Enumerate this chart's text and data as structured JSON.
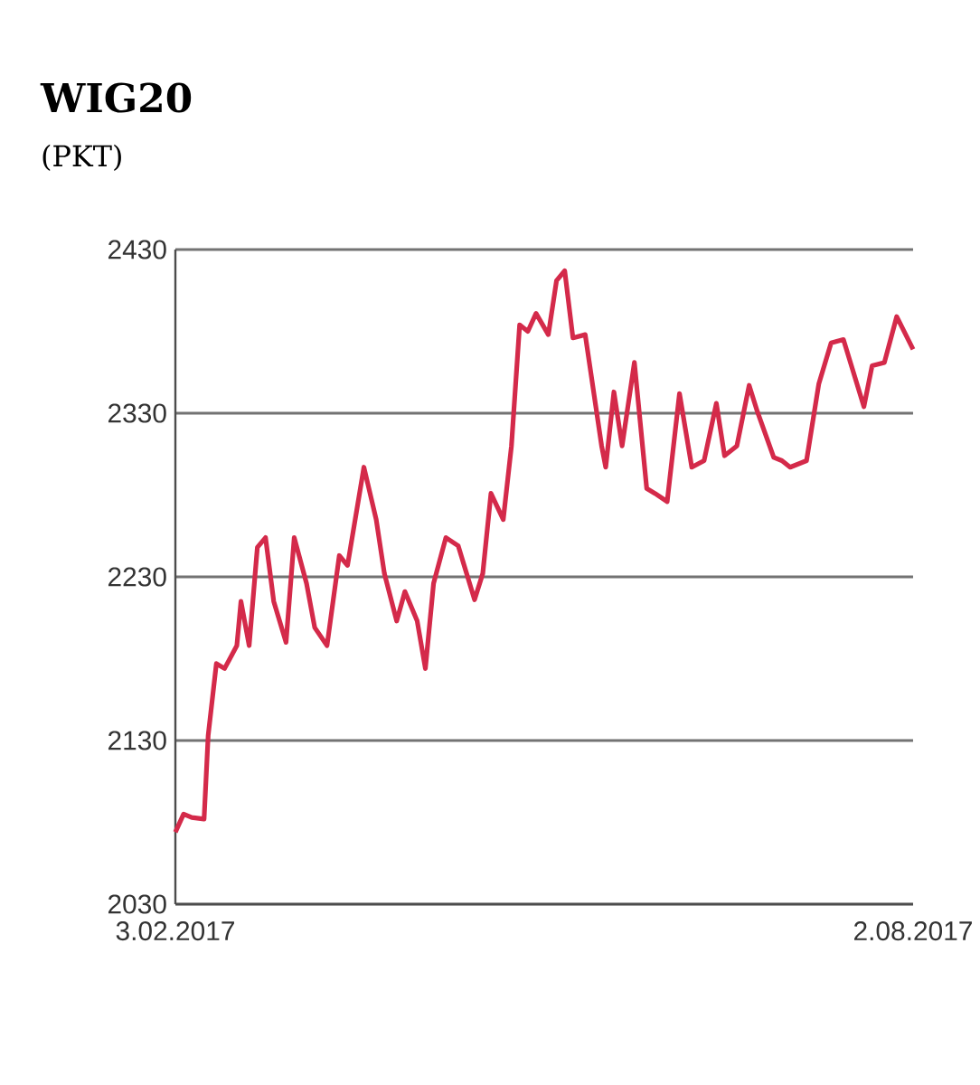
{
  "chart_data": {
    "type": "line",
    "title": "WIG20",
    "subtitle": "(PKT)",
    "x": [
      "2017-02-03",
      "2017-02-05",
      "2017-02-07",
      "2017-02-10",
      "2017-02-11",
      "2017-02-13",
      "2017-02-15",
      "2017-02-18",
      "2017-02-19",
      "2017-02-21",
      "2017-02-23",
      "2017-02-25",
      "2017-02-27",
      "2017-03-02",
      "2017-03-04",
      "2017-03-07",
      "2017-03-09",
      "2017-03-12",
      "2017-03-15",
      "2017-03-17",
      "2017-03-21",
      "2017-03-24",
      "2017-03-26",
      "2017-03-29",
      "2017-03-31",
      "2017-04-03",
      "2017-04-05",
      "2017-04-07",
      "2017-04-10",
      "2017-04-13",
      "2017-04-17",
      "2017-04-19",
      "2017-04-21",
      "2017-04-24",
      "2017-04-26",
      "2017-04-28",
      "2017-04-30",
      "2017-05-02",
      "2017-05-05",
      "2017-05-07",
      "2017-05-09",
      "2017-05-11",
      "2017-05-14",
      "2017-05-18",
      "2017-05-19",
      "2017-05-21",
      "2017-05-23",
      "2017-05-26",
      "2017-05-29",
      "2017-05-31",
      "2017-06-03",
      "2017-06-06",
      "2017-06-09",
      "2017-06-12",
      "2017-06-15",
      "2017-06-17",
      "2017-06-20",
      "2017-06-23",
      "2017-06-25",
      "2017-06-29",
      "2017-07-01",
      "2017-07-03",
      "2017-07-07",
      "2017-07-10",
      "2017-07-13",
      "2017-07-16",
      "2017-07-21",
      "2017-07-23",
      "2017-07-26",
      "2017-07-29",
      "2017-08-02"
    ],
    "series": [
      {
        "color": "#d42a4a",
        "values": [
          2074,
          2085,
          2083,
          2082,
          2133,
          2177,
          2174,
          2188,
          2215,
          2188,
          2248,
          2254,
          2215,
          2190,
          2254,
          2226,
          2199,
          2188,
          2243,
          2237,
          2297,
          2265,
          2232,
          2203,
          2221,
          2203,
          2174,
          2226,
          2254,
          2249,
          2216,
          2232,
          2281,
          2265,
          2310,
          2384,
          2380,
          2391,
          2378,
          2411,
          2417,
          2376,
          2378,
          2310,
          2297,
          2343,
          2310,
          2361,
          2284,
          2281,
          2276,
          2342,
          2297,
          2301,
          2336,
          2304,
          2310,
          2347,
          2331,
          2303,
          2301,
          2297,
          2301,
          2348,
          2373,
          2375,
          2334,
          2359,
          2361,
          2389,
          2369
        ]
      }
    ],
    "xlim": [
      "2017-02-03",
      "2017-08-02"
    ],
    "xticks": [
      {
        "value": "2017-02-03",
        "label": "3.02.2017"
      },
      {
        "value": "2017-08-02",
        "label": "2.08.2017"
      }
    ],
    "ylim": [
      2030,
      2430
    ],
    "yticks": [
      2030,
      2130,
      2230,
      2330,
      2430
    ],
    "grid": "y"
  }
}
